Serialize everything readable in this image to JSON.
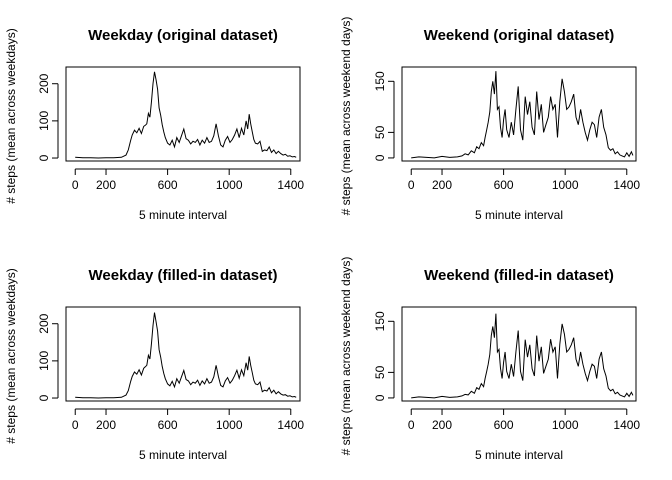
{
  "chart_data": [
    {
      "type": "line",
      "title": "Weekday (original dataset)",
      "xlabel": "5 minute interval",
      "ylabel": "# steps (mean across weekdays)",
      "x_ticks": [
        0,
        200,
        600,
        1000,
        1400
      ],
      "y_ticks": [
        0,
        100,
        200
      ],
      "xlim": [
        -60,
        1460
      ],
      "ylim": [
        -8,
        245
      ],
      "grid": false,
      "series": [
        {
          "x": [
            0,
            50,
            100,
            150,
            200,
            250,
            300,
            330,
            345,
            360,
            370,
            385,
            400,
            415,
            430,
            445,
            455,
            465,
            475,
            485,
            495,
            505,
            515,
            525,
            535,
            545,
            555,
            565,
            575,
            585,
            600,
            615,
            630,
            645,
            660,
            675,
            690,
            705,
            720,
            735,
            750,
            765,
            780,
            795,
            810,
            825,
            840,
            855,
            870,
            885,
            900,
            915,
            930,
            945,
            960,
            975,
            990,
            1005,
            1020,
            1035,
            1050,
            1065,
            1080,
            1095,
            1110,
            1120,
            1130,
            1140,
            1150,
            1160,
            1170,
            1185,
            1200,
            1215,
            1230,
            1245,
            1260,
            1275,
            1290,
            1305,
            1320,
            1335,
            1350,
            1365,
            1380,
            1395,
            1410,
            1425,
            1435
          ],
          "y": [
            2,
            1,
            1,
            0,
            1,
            1,
            2,
            8,
            22,
            48,
            62,
            75,
            68,
            80,
            66,
            85,
            88,
            92,
            120,
            110,
            150,
            200,
            232,
            210,
            185,
            135,
            115,
            90,
            70,
            55,
            40,
            35,
            48,
            30,
            55,
            42,
            60,
            78,
            52,
            48,
            38,
            45,
            42,
            50,
            35,
            48,
            40,
            55,
            42,
            45,
            60,
            92,
            60,
            35,
            30,
            48,
            58,
            42,
            50,
            62,
            78,
            55,
            80,
            62,
            100,
            78,
            118,
            92,
            70,
            50,
            40,
            38,
            45,
            18,
            22,
            20,
            30,
            15,
            22,
            12,
            18,
            12,
            8,
            10,
            5,
            6,
            3,
            4,
            2
          ]
        }
      ]
    },
    {
      "type": "line",
      "title": "Weekend (original dataset)",
      "xlabel": "5 minute interval",
      "ylabel": "# steps (mean across weekend days)",
      "x_ticks": [
        0,
        200,
        600,
        1000,
        1400
      ],
      "y_ticks": [
        0,
        50,
        150
      ],
      "xlim": [
        -60,
        1460
      ],
      "ylim": [
        -6,
        178
      ],
      "grid": false,
      "series": [
        {
          "x": [
            0,
            50,
            100,
            150,
            200,
            250,
            300,
            330,
            350,
            370,
            390,
            410,
            425,
            440,
            455,
            470,
            480,
            490,
            500,
            510,
            520,
            530,
            540,
            550,
            560,
            570,
            580,
            590,
            600,
            610,
            620,
            635,
            650,
            665,
            680,
            695,
            710,
            725,
            740,
            755,
            770,
            785,
            800,
            815,
            830,
            845,
            860,
            875,
            890,
            905,
            920,
            935,
            950,
            965,
            980,
            995,
            1010,
            1025,
            1040,
            1055,
            1070,
            1085,
            1100,
            1115,
            1130,
            1145,
            1160,
            1175,
            1190,
            1205,
            1220,
            1235,
            1250,
            1265,
            1280,
            1295,
            1310,
            1325,
            1340,
            1355,
            1370,
            1385,
            1400,
            1415,
            1430,
            1440
          ],
          "y": [
            0,
            2,
            1,
            0,
            3,
            1,
            2,
            4,
            8,
            6,
            14,
            10,
            22,
            18,
            30,
            24,
            40,
            55,
            70,
            90,
            130,
            150,
            125,
            170,
            95,
            100,
            60,
            40,
            75,
            95,
            55,
            40,
            70,
            45,
            95,
            140,
            55,
            35,
            120,
            85,
            110,
            60,
            45,
            130,
            75,
            105,
            50,
            65,
            80,
            120,
            95,
            105,
            40,
            110,
            155,
            130,
            95,
            100,
            110,
            125,
            80,
            65,
            95,
            70,
            50,
            35,
            55,
            70,
            65,
            40,
            80,
            95,
            60,
            45,
            20,
            15,
            18,
            8,
            12,
            6,
            4,
            2,
            10,
            3,
            12,
            5
          ]
        }
      ]
    },
    {
      "type": "line",
      "title": "Weekday (filled-in dataset)",
      "xlabel": "5 minute interval",
      "ylabel": "# steps (mean across weekdays)",
      "x_ticks": [
        0,
        200,
        600,
        1000,
        1400
      ],
      "y_ticks": [
        0,
        100,
        200
      ],
      "xlim": [
        -60,
        1460
      ],
      "ylim": [
        -8,
        245
      ],
      "grid": false,
      "series": [
        {
          "x": [
            0,
            50,
            100,
            150,
            200,
            250,
            300,
            330,
            345,
            360,
            370,
            385,
            400,
            415,
            430,
            445,
            455,
            465,
            475,
            485,
            495,
            505,
            515,
            525,
            535,
            545,
            555,
            565,
            575,
            585,
            600,
            615,
            630,
            645,
            660,
            675,
            690,
            705,
            720,
            735,
            750,
            765,
            780,
            795,
            810,
            825,
            840,
            855,
            870,
            885,
            900,
            915,
            930,
            945,
            960,
            975,
            990,
            1005,
            1020,
            1035,
            1050,
            1065,
            1080,
            1095,
            1110,
            1120,
            1130,
            1140,
            1150,
            1160,
            1170,
            1185,
            1200,
            1215,
            1230,
            1245,
            1260,
            1275,
            1290,
            1305,
            1320,
            1335,
            1350,
            1365,
            1380,
            1395,
            1410,
            1425,
            1435
          ],
          "y": [
            2,
            1,
            1,
            0,
            1,
            1,
            2,
            8,
            20,
            45,
            58,
            70,
            64,
            76,
            62,
            80,
            84,
            88,
            115,
            105,
            145,
            195,
            230,
            205,
            180,
            130,
            110,
            85,
            66,
            52,
            38,
            33,
            45,
            30,
            52,
            40,
            57,
            74,
            50,
            46,
            36,
            43,
            40,
            48,
            34,
            46,
            38,
            52,
            40,
            43,
            57,
            88,
            58,
            34,
            30,
            46,
            55,
            40,
            48,
            60,
            75,
            53,
            76,
            60,
            95,
            75,
            112,
            88,
            68,
            48,
            38,
            36,
            43,
            17,
            21,
            19,
            28,
            14,
            21,
            11,
            17,
            11,
            8,
            9,
            5,
            6,
            3,
            4,
            2
          ]
        }
      ]
    },
    {
      "type": "line",
      "title": "Weekend (filled-in dataset)",
      "xlabel": "5 minute interval",
      "ylabel": "# steps (mean across weekend days)",
      "x_ticks": [
        0,
        200,
        600,
        1000,
        1400
      ],
      "y_ticks": [
        0,
        50,
        150
      ],
      "xlim": [
        -60,
        1460
      ],
      "ylim": [
        -6,
        178
      ],
      "grid": false,
      "series": [
        {
          "x": [
            0,
            50,
            100,
            150,
            200,
            250,
            300,
            330,
            350,
            370,
            390,
            410,
            425,
            440,
            455,
            470,
            480,
            490,
            500,
            510,
            520,
            530,
            540,
            550,
            560,
            570,
            580,
            590,
            600,
            610,
            620,
            635,
            650,
            665,
            680,
            695,
            710,
            725,
            740,
            755,
            770,
            785,
            800,
            815,
            830,
            845,
            860,
            875,
            890,
            905,
            920,
            935,
            950,
            965,
            980,
            995,
            1010,
            1025,
            1040,
            1055,
            1070,
            1085,
            1100,
            1115,
            1130,
            1145,
            1160,
            1175,
            1190,
            1205,
            1220,
            1235,
            1250,
            1265,
            1280,
            1295,
            1310,
            1325,
            1340,
            1355,
            1370,
            1385,
            1400,
            1415,
            1430,
            1440
          ],
          "y": [
            0,
            2,
            1,
            0,
            3,
            1,
            2,
            4,
            7,
            6,
            13,
            9,
            20,
            17,
            28,
            22,
            38,
            52,
            66,
            85,
            122,
            140,
            118,
            165,
            90,
            95,
            58,
            38,
            70,
            90,
            52,
            38,
            66,
            42,
            90,
            132,
            52,
            34,
            114,
            80,
            104,
            57,
            43,
            122,
            72,
            100,
            48,
            62,
            76,
            115,
            90,
            100,
            38,
            105,
            145,
            125,
            90,
            95,
            104,
            118,
            76,
            62,
            90,
            66,
            48,
            34,
            52,
            66,
            62,
            38,
            76,
            90,
            57,
            43,
            19,
            14,
            17,
            8,
            11,
            6,
            4,
            2,
            9,
            3,
            11,
            5
          ]
        }
      ]
    }
  ]
}
